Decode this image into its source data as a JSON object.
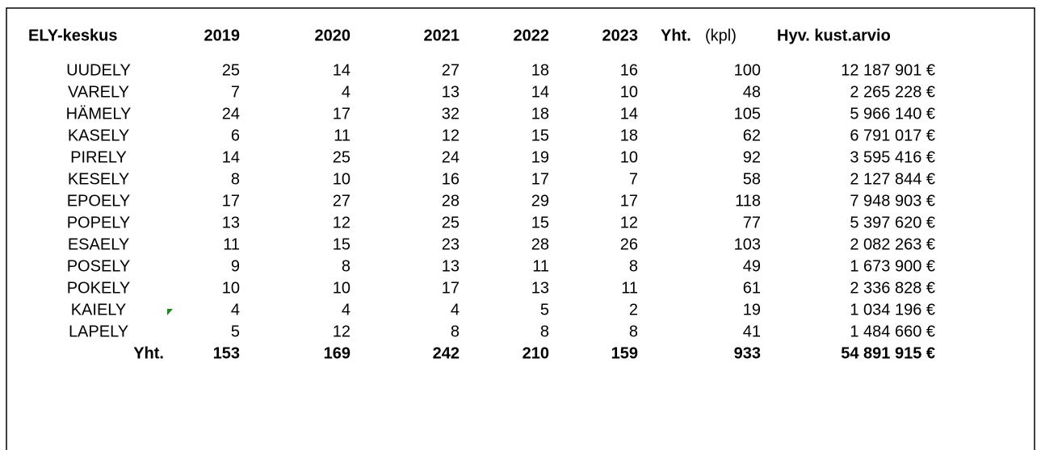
{
  "table": {
    "header": [
      "ELY-keskus",
      "2019",
      "2020",
      "2021",
      "2022",
      "2023",
      "Yht.",
      "Hyv. kust.arvio"
    ],
    "header_unit": "(kpl)",
    "rows": [
      [
        "UUDELY",
        25,
        14,
        27,
        18,
        16,
        100,
        "12 187 901 €"
      ],
      [
        "VARELY",
        7,
        4,
        13,
        14,
        10,
        48,
        "2 265 228 €"
      ],
      [
        "HÄMELY",
        24,
        17,
        32,
        18,
        14,
        105,
        "5 966 140 €"
      ],
      [
        "KASELY",
        6,
        11,
        12,
        15,
        18,
        62,
        "6 791 017 €"
      ],
      [
        "PIRELY",
        14,
        25,
        24,
        19,
        10,
        92,
        "3 595 416 €"
      ],
      [
        "KESELY",
        8,
        10,
        16,
        17,
        7,
        58,
        "2 127 844 €"
      ],
      [
        "EPOELY",
        17,
        27,
        28,
        29,
        17,
        118,
        "7 948 903 €"
      ],
      [
        "POPELY",
        13,
        12,
        25,
        15,
        12,
        77,
        "5 397 620 €"
      ],
      [
        "ESAELY",
        11,
        15,
        23,
        28,
        26,
        103,
        "2 082 263 €"
      ],
      [
        "POSELY",
        9,
        8,
        13,
        11,
        8,
        49,
        "1 673 900 €"
      ],
      [
        "POKELY",
        10,
        10,
        17,
        13,
        11,
        61,
        "2 336 828 €"
      ],
      [
        "KAIELY",
        4,
        4,
        4,
        5,
        2,
        19,
        "1 034 196 €"
      ],
      [
        "LAPELY",
        5,
        12,
        8,
        8,
        8,
        41,
        "1 484 660 €"
      ]
    ],
    "total": [
      "Yht.",
      153,
      169,
      242,
      210,
      159,
      933,
      "54 891 915 €"
    ]
  }
}
